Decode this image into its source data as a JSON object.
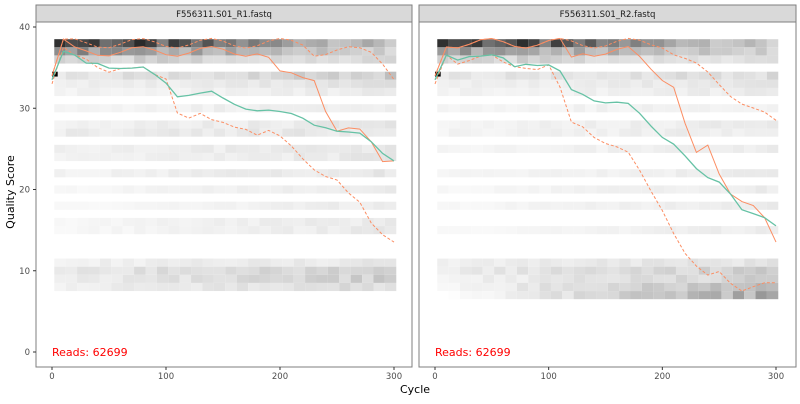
{
  "chart_data": {
    "type": "line",
    "xlabel": "Cycle",
    "ylabel": "Quality Score",
    "xlim": [
      0,
      300
    ],
    "ylim": [
      0,
      40
    ],
    "x_ticks": [
      0,
      100,
      200,
      300
    ],
    "y_ticks": [
      0,
      10,
      20,
      30,
      40
    ],
    "grid": false,
    "colors": {
      "mean": "#66c2a5",
      "quantiles": "#fc8d62",
      "reads_label": "#ff0000",
      "strip_bg": "#d9d9d9"
    },
    "x": [
      0,
      10,
      20,
      30,
      40,
      50,
      60,
      70,
      80,
      90,
      100,
      110,
      120,
      130,
      140,
      150,
      160,
      170,
      180,
      190,
      200,
      210,
      220,
      230,
      240,
      250,
      260,
      270,
      280,
      290,
      300
    ],
    "panels": [
      {
        "title": "F556311.S01_R1.fastq",
        "reads_label": "Reads:  62699",
        "mean": [
          33.5,
          36.5,
          36,
          35.5,
          36,
          35.5,
          35,
          34.5,
          34.5,
          34,
          33.5,
          32,
          31.8,
          31.5,
          31.5,
          31,
          30.8,
          30.5,
          30,
          29.5,
          29,
          29,
          29,
          28.5,
          28,
          27,
          26.5,
          26.5,
          26,
          25,
          24
        ],
        "median": [
          34,
          38,
          37,
          37,
          37,
          37,
          37,
          37,
          37,
          37,
          37,
          37,
          37,
          37,
          37,
          37,
          37,
          37,
          37,
          36,
          34,
          34,
          34,
          34,
          30,
          27,
          27,
          27,
          26,
          24,
          24
        ],
        "q25": [
          33,
          37,
          36,
          36,
          35.5,
          35,
          35,
          34.5,
          34.5,
          34,
          34,
          30,
          29,
          29,
          28,
          28,
          28,
          28,
          27,
          27,
          26,
          25,
          24,
          23,
          22,
          21,
          19,
          18,
          16,
          15,
          14
        ],
        "q75": [
          34,
          38,
          38,
          38,
          38,
          38,
          38,
          38,
          38,
          38,
          38,
          38,
          38,
          38,
          38,
          38,
          38,
          38,
          38,
          38,
          38,
          38,
          38,
          37,
          37,
          37,
          37,
          37,
          37,
          36,
          34
        ],
        "heat_rows": [
          {
            "q": 38,
            "start": 0.85,
            "end": 0.25
          },
          {
            "q": 37,
            "start": 0.45,
            "end": 0.2
          },
          {
            "q": 36,
            "start": 0.2,
            "end": 0.15
          },
          {
            "q": 34,
            "start": 0.1,
            "end": 0.22
          },
          {
            "q": 33,
            "start": 0.06,
            "end": 0.12
          },
          {
            "q": 32,
            "start": 0.05,
            "end": 0.08
          },
          {
            "q": 30,
            "start": 0.05,
            "end": 0.08
          },
          {
            "q": 28,
            "start": 0.06,
            "end": 0.1
          },
          {
            "q": 27,
            "start": 0.08,
            "end": 0.1
          },
          {
            "q": 25,
            "start": 0.06,
            "end": 0.1
          },
          {
            "q": 24,
            "start": 0.05,
            "end": 0.1
          },
          {
            "q": 22,
            "start": 0.05,
            "end": 0.1
          },
          {
            "q": 20,
            "start": 0.03,
            "end": 0.08
          },
          {
            "q": 18,
            "start": 0.03,
            "end": 0.08
          },
          {
            "q": 16,
            "start": 0.03,
            "end": 0.09
          },
          {
            "q": 15,
            "start": 0.03,
            "end": 0.09
          },
          {
            "q": 11,
            "start": 0.06,
            "end": 0.1
          },
          {
            "q": 10,
            "start": 0.1,
            "end": 0.2
          },
          {
            "q": 9,
            "start": 0.08,
            "end": 0.2
          },
          {
            "q": 8,
            "start": 0.06,
            "end": 0.15
          }
        ]
      },
      {
        "title": "F556311.S01_R2.fastq",
        "reads_label": "Reads:  62699",
        "mean": [
          33.5,
          37,
          36.5,
          36.5,
          36,
          36,
          36,
          35.5,
          36,
          35.5,
          35,
          34,
          32,
          32,
          31.5,
          31,
          30.5,
          30,
          29,
          28,
          27,
          26,
          24,
          22,
          21,
          21,
          20,
          18,
          17,
          16,
          15
        ],
        "median": [
          34,
          38,
          38,
          38,
          38,
          38,
          38,
          38,
          38,
          38,
          38,
          38,
          36,
          37,
          37,
          37,
          37,
          37,
          36,
          35,
          34,
          33,
          28,
          24,
          25,
          22,
          20,
          19,
          18,
          16,
          13
        ],
        "q25": [
          33,
          37,
          36,
          36,
          36,
          36,
          35.5,
          35.5,
          35.5,
          35,
          35,
          32,
          28,
          28,
          27,
          26,
          25,
          24,
          22,
          20,
          18,
          15,
          12,
          10,
          9,
          10,
          9,
          8,
          8,
          8,
          8
        ],
        "q75": [
          34,
          38,
          38,
          38,
          38,
          38,
          38,
          38,
          38,
          38,
          38,
          38,
          38,
          38,
          38,
          38,
          38,
          38,
          38,
          38,
          38,
          37,
          36,
          35,
          34,
          33,
          32,
          31,
          30,
          29,
          28
        ],
        "heat_rows": [
          {
            "q": 38,
            "start": 0.85,
            "end": 0.2
          },
          {
            "q": 37,
            "start": 0.4,
            "end": 0.2
          },
          {
            "q": 36,
            "start": 0.2,
            "end": 0.12
          },
          {
            "q": 34,
            "start": 0.1,
            "end": 0.15
          },
          {
            "q": 33,
            "start": 0.06,
            "end": 0.1
          },
          {
            "q": 32,
            "start": 0.05,
            "end": 0.08
          },
          {
            "q": 30,
            "start": 0.05,
            "end": 0.06
          },
          {
            "q": 28,
            "start": 0.05,
            "end": 0.08
          },
          {
            "q": 27,
            "start": 0.05,
            "end": 0.08
          },
          {
            "q": 25,
            "start": 0.04,
            "end": 0.08
          },
          {
            "q": 22,
            "start": 0.04,
            "end": 0.08
          },
          {
            "q": 20,
            "start": 0.03,
            "end": 0.08
          },
          {
            "q": 18,
            "start": 0.03,
            "end": 0.08
          },
          {
            "q": 15,
            "start": 0.03,
            "end": 0.08
          },
          {
            "q": 11,
            "start": 0.06,
            "end": 0.12
          },
          {
            "q": 10,
            "start": 0.08,
            "end": 0.2
          },
          {
            "q": 9,
            "start": 0.05,
            "end": 0.2
          },
          {
            "q": 8,
            "start": 0.03,
            "end": 0.3
          },
          {
            "q": 7,
            "start": 0.0,
            "end": 0.35
          }
        ]
      }
    ]
  }
}
